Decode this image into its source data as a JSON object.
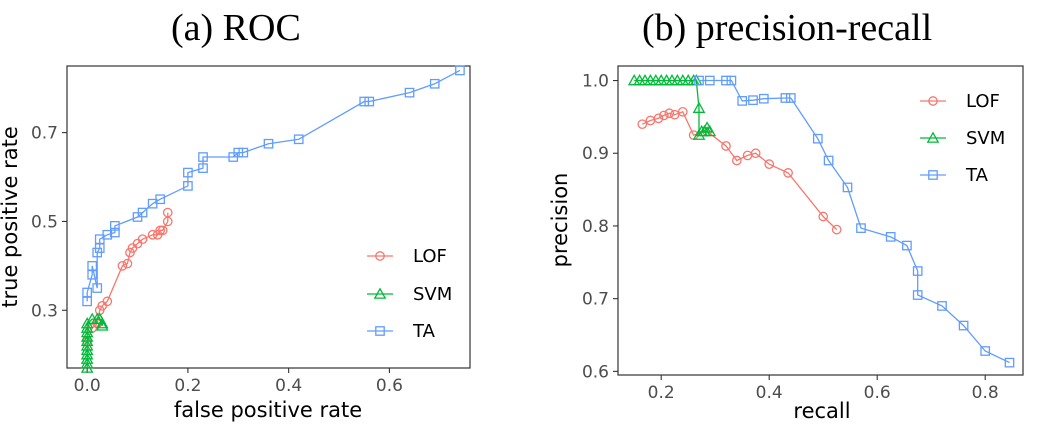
{
  "chart_data": [
    {
      "type": "line",
      "title": "(a) ROC",
      "xlabel": "false positive rate",
      "ylabel": "true positive rate",
      "xlim": [
        -0.04,
        0.76
      ],
      "ylim": [
        0.17,
        0.85
      ],
      "xticks": [
        0.0,
        0.2,
        0.4,
        0.6
      ],
      "xtick_labels": [
        "0.0",
        "0.2",
        "0.4",
        "0.6"
      ],
      "yticks": [
        0.3,
        0.5,
        0.7
      ],
      "ytick_labels": [
        "0.3",
        "0.5",
        "0.7"
      ],
      "grid": false,
      "legend_position": "bottom-right",
      "series": [
        {
          "name": "LOF",
          "color": "#f8766d",
          "marker": "circle",
          "x": [
            0.0,
            0.01,
            0.02,
            0.025,
            0.03,
            0.04,
            0.07,
            0.08,
            0.085,
            0.09,
            0.1,
            0.11,
            0.13,
            0.14,
            0.145,
            0.15,
            0.16,
            0.16
          ],
          "y": [
            0.23,
            0.26,
            0.27,
            0.3,
            0.31,
            0.32,
            0.4,
            0.405,
            0.43,
            0.44,
            0.45,
            0.46,
            0.47,
            0.47,
            0.48,
            0.48,
            0.5,
            0.52
          ]
        },
        {
          "name": "SVM",
          "color": "#00ba38",
          "marker": "triangle",
          "x": [
            0.0,
            0.0,
            0.0,
            0.0,
            0.0,
            0.0,
            0.0,
            0.0,
            0.0,
            0.0,
            0.0,
            0.01,
            0.02,
            0.025,
            0.03,
            0.03,
            0.025
          ],
          "y": [
            0.17,
            0.18,
            0.19,
            0.2,
            0.21,
            0.22,
            0.23,
            0.24,
            0.25,
            0.26,
            0.27,
            0.28,
            0.28,
            0.28,
            0.27,
            0.265,
            0.28
          ]
        },
        {
          "name": "TA",
          "color": "#619cff",
          "marker": "square",
          "x": [
            0.0,
            0.0,
            0.01,
            0.01,
            0.02,
            0.02,
            0.025,
            0.025,
            0.04,
            0.055,
            0.055,
            0.1,
            0.11,
            0.13,
            0.145,
            0.2,
            0.2,
            0.23,
            0.23,
            0.29,
            0.3,
            0.31,
            0.36,
            0.42,
            0.55,
            0.56,
            0.64,
            0.69,
            0.74
          ],
          "y": [
            0.32,
            0.34,
            0.38,
            0.4,
            0.35,
            0.43,
            0.44,
            0.46,
            0.47,
            0.475,
            0.49,
            0.51,
            0.52,
            0.54,
            0.55,
            0.58,
            0.61,
            0.62,
            0.645,
            0.645,
            0.655,
            0.655,
            0.675,
            0.685,
            0.77,
            0.77,
            0.79,
            0.81,
            0.84
          ]
        }
      ]
    },
    {
      "type": "line",
      "title": "(b) precision-recall",
      "xlabel": "recall",
      "ylabel": "precision",
      "xlim": [
        0.12,
        0.87
      ],
      "ylim": [
        0.595,
        1.02
      ],
      "xticks": [
        0.2,
        0.4,
        0.6,
        0.8
      ],
      "xtick_labels": [
        "0.2",
        "0.4",
        "0.6",
        "0.8"
      ],
      "yticks": [
        0.6,
        0.7,
        0.8,
        0.9,
        1.0
      ],
      "ytick_labels": [
        "0.6",
        "0.7",
        "0.8",
        "0.9",
        "1.0"
      ],
      "grid": false,
      "legend_position": "top-right",
      "series": [
        {
          "name": "LOF",
          "color": "#f8766d",
          "marker": "circle",
          "x": [
            0.165,
            0.18,
            0.195,
            0.205,
            0.215,
            0.225,
            0.24,
            0.26,
            0.285,
            0.32,
            0.34,
            0.36,
            0.375,
            0.4,
            0.435,
            0.5,
            0.525
          ],
          "y": [
            0.94,
            0.945,
            0.948,
            0.952,
            0.955,
            0.953,
            0.957,
            0.925,
            0.93,
            0.91,
            0.89,
            0.897,
            0.9,
            0.885,
            0.873,
            0.813,
            0.795
          ]
        },
        {
          "name": "SVM",
          "color": "#00ba38",
          "marker": "triangle",
          "x": [
            0.15,
            0.16,
            0.17,
            0.18,
            0.19,
            0.2,
            0.21,
            0.22,
            0.23,
            0.24,
            0.25,
            0.26,
            0.265,
            0.27,
            0.27,
            0.275,
            0.28,
            0.285,
            0.29
          ],
          "y": [
            1.0,
            1.0,
            1.0,
            1.0,
            1.0,
            1.0,
            1.0,
            1.0,
            1.0,
            1.0,
            1.0,
            1.0,
            1.0,
            0.962,
            0.925,
            0.93,
            0.93,
            0.935,
            0.93
          ]
        },
        {
          "name": "TA",
          "color": "#619cff",
          "marker": "square",
          "x": [
            0.27,
            0.29,
            0.32,
            0.33,
            0.35,
            0.37,
            0.39,
            0.43,
            0.44,
            0.49,
            0.51,
            0.545,
            0.57,
            0.625,
            0.655,
            0.675,
            0.675,
            0.72,
            0.76,
            0.8,
            0.845
          ],
          "y": [
            1.0,
            1.0,
            1.0,
            1.0,
            0.972,
            0.973,
            0.975,
            0.976,
            0.976,
            0.92,
            0.89,
            0.853,
            0.797,
            0.785,
            0.773,
            0.738,
            0.705,
            0.69,
            0.663,
            0.628,
            0.612
          ]
        }
      ]
    }
  ]
}
